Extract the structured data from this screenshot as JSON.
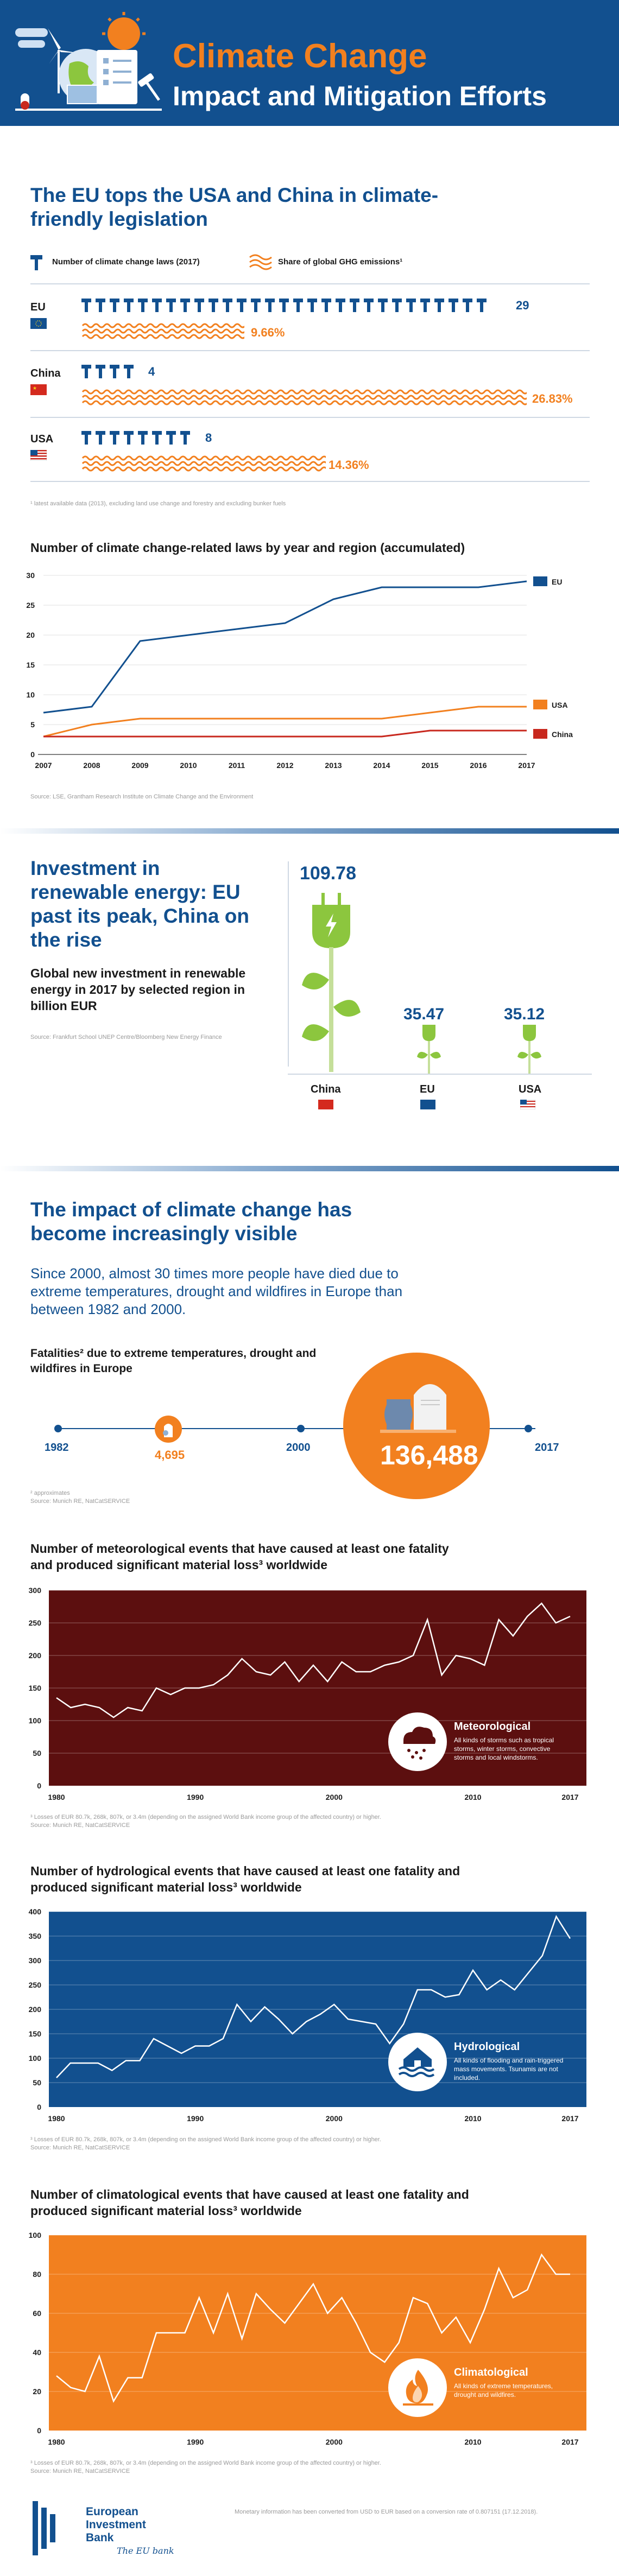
{
  "header": {
    "title_line1": "Climate Change",
    "title_line2": "Impact and Mitigation Efforts"
  },
  "section1": {
    "title": "The EU tops the USA and China in climate-friendly legislation",
    "legend_laws": "Number of climate change laws (2017)",
    "legend_ghg": "Share of global GHG emissions¹",
    "rows": [
      {
        "country": "EU",
        "laws": "29",
        "ghg": "9.66%"
      },
      {
        "country": "China",
        "laws": "4",
        "ghg": "26.83%"
      },
      {
        "country": "USA",
        "laws": "8",
        "ghg": "14.36%"
      }
    ],
    "footnote": "¹ latest available data (2013), excluding land use change and forestry and excluding bunker fuels"
  },
  "chart_laws": {
    "title": "Number of climate change-related laws by year and region (accumulated)",
    "source": "Source: LSE, Grantham Research Institute on Climate Change and the Environment"
  },
  "section2": {
    "title": "Investment in renewable energy: EU past its peak, China on the rise",
    "subtitle": "Global new investment in renewable energy in 2017 by selected region in billion EUR",
    "source": "Source: Frankfurt School UNEP Centre/Bloomberg New Energy Finance",
    "items": [
      {
        "country": "China",
        "value": "109.78"
      },
      {
        "country": "EU",
        "value": "35.47"
      },
      {
        "country": "USA",
        "value": "35.12"
      }
    ]
  },
  "section3": {
    "title": "The impact of climate change has become increasingly visible",
    "lead": "Since 2000, almost 30 times more people have died due to extreme temperatures, drought and wildfires in Europe than between 1982 and 2000.",
    "fatalities_title": "Fatalities² due to extreme temperatures, drought and wildfires in Europe",
    "years": [
      "1982",
      "2000",
      "2017"
    ],
    "value_small": "4,695",
    "value_big": "136,488",
    "footnote1": "² approximates",
    "footnote2": "Source: Munich RE, NatCatSERVICE"
  },
  "chart_met": {
    "title": "Number of meteorological events that have caused at least one fatality and produced significant material loss³ worldwide",
    "label": "Meteorological",
    "desc": "All kinds of storms such as tropical storms, winter storms, convective storms and local windstorms.",
    "footnote": "³ Losses of EUR 80.7k, 268k, 807k, or 3.4m (depending on the assigned World Bank income group of the affected country) or higher.",
    "source": "Source: Munich RE, NatCatSERVICE"
  },
  "chart_hyd": {
    "title": "Number of hydrological events that have caused at least one fatality and produced significant material loss³ worldwide",
    "label": "Hydrological",
    "desc": "All kinds of flooding and rain-triggered mass movements. Tsunamis are not included.",
    "footnote": "³ Losses of EUR 80.7k, 268k, 807k, or 3.4m (depending on the assigned World Bank income group of the affected country) or higher.",
    "source": "Source: Munich RE, NatCatSERVICE"
  },
  "chart_cli": {
    "title": "Number of climatological events that have caused at least one fatality and produced significant material loss³ worldwide",
    "label": "Climatological",
    "desc": "All kinds of extreme temperatures, drought and wildfires.",
    "footnote": "³ Losses of EUR 80.7k, 268k, 807k, or 3.4m (depending on the assigned World Bank income group of the affected country) or higher.",
    "source": "Source: Munich RE, NatCatSERVICE"
  },
  "footer": {
    "org": "European Investment Bank",
    "tagline": "The EU bank",
    "note": "Monetary information has been converted from USD to EUR based on a conversion rate of 0.807151 (17.12.2018)."
  },
  "colors": {
    "blue": "#12508f",
    "orange": "#f2801f",
    "darkred": "#5c0f0f",
    "red": "#c8281e",
    "green": "#8cc63e"
  },
  "chart_data": [
    {
      "type": "line",
      "title": "Number of climate change-related laws by year and region (accumulated)",
      "x": [
        2007,
        2008,
        2009,
        2010,
        2011,
        2012,
        2013,
        2014,
        2015,
        2016,
        2017
      ],
      "xticks": [
        "2007",
        "2008",
        "2009",
        "2010",
        "2011",
        "2012",
        "2013",
        "2014",
        "2015",
        "2016",
        "2017"
      ],
      "yticks": [
        "0",
        "5",
        "10",
        "15",
        "20",
        "25",
        "30"
      ],
      "ylim": [
        0,
        30
      ],
      "series": [
        {
          "name": "EU",
          "color": "#12508f",
          "values": [
            7,
            8,
            19,
            20,
            21,
            22,
            26,
            28,
            28,
            28,
            29
          ]
        },
        {
          "name": "USA",
          "color": "#f2801f",
          "values": [
            3,
            5,
            6,
            6,
            6,
            6,
            6,
            6,
            7,
            8,
            8
          ]
        },
        {
          "name": "China",
          "color": "#c8281e",
          "values": [
            3,
            3,
            3,
            3,
            3,
            3,
            3,
            3,
            4,
            4,
            4
          ]
        }
      ]
    },
    {
      "type": "line",
      "title": "Meteorological events",
      "x_start": 1980,
      "xticks": [
        "1980",
        "1990",
        "2000",
        "2010",
        "2017"
      ],
      "yticks": [
        "0",
        "50",
        "100",
        "150",
        "200",
        "250",
        "300"
      ],
      "ylim": [
        0,
        300
      ],
      "values": [
        135,
        120,
        125,
        120,
        105,
        120,
        115,
        150,
        140,
        150,
        150,
        155,
        170,
        195,
        175,
        170,
        190,
        160,
        185,
        160,
        190,
        175,
        175,
        185,
        190,
        200,
        255,
        170,
        200,
        195,
        185,
        255,
        230,
        260,
        280,
        250,
        260
      ]
    },
    {
      "type": "line",
      "title": "Hydrological events",
      "x_start": 1980,
      "xticks": [
        "1980",
        "1990",
        "2000",
        "2010",
        "2017"
      ],
      "yticks": [
        "0",
        "50",
        "100",
        "150",
        "200",
        "250",
        "300",
        "350",
        "400"
      ],
      "ylim": [
        0,
        400
      ],
      "values": [
        60,
        90,
        90,
        90,
        75,
        95,
        95,
        140,
        125,
        110,
        125,
        125,
        140,
        210,
        175,
        205,
        180,
        150,
        175,
        190,
        210,
        180,
        175,
        170,
        130,
        170,
        240,
        240,
        225,
        230,
        280,
        240,
        260,
        240,
        275,
        310,
        390,
        345
      ]
    },
    {
      "type": "line",
      "title": "Climatological events",
      "x_start": 1980,
      "xticks": [
        "1980",
        "1990",
        "2000",
        "2010",
        "2017"
      ],
      "yticks": [
        "0",
        "20",
        "40",
        "60",
        "80",
        "100"
      ],
      "ylim": [
        0,
        100
      ],
      "values": [
        28,
        22,
        20,
        38,
        15,
        27,
        27,
        50,
        50,
        50,
        68,
        50,
        70,
        47,
        70,
        62,
        55,
        65,
        75,
        60,
        68,
        55,
        40,
        35,
        45,
        68,
        65,
        50,
        58,
        45,
        62,
        83,
        68,
        72,
        90,
        80,
        80
      ]
    }
  ]
}
